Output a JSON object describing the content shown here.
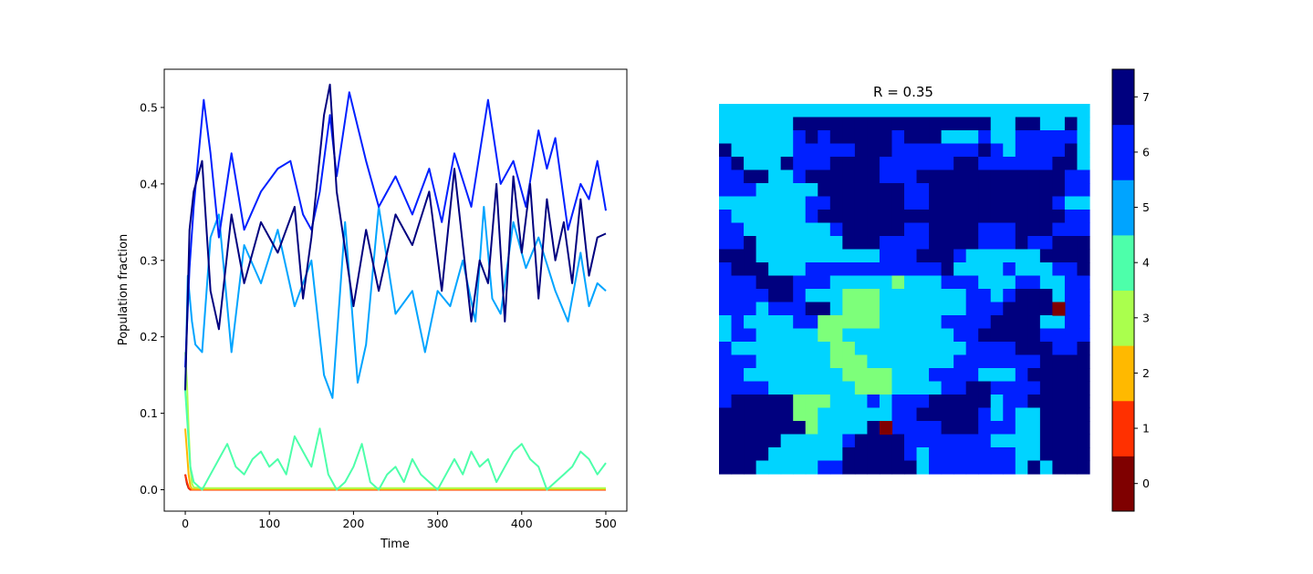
{
  "left_chart": {
    "xlabel": "Time",
    "ylabel": "Population fraction",
    "xticks": [
      "0",
      "100",
      "200",
      "300",
      "400",
      "500"
    ],
    "yticks": [
      "0.0",
      "0.1",
      "0.2",
      "0.3",
      "0.4",
      "0.5"
    ]
  },
  "right_chart": {
    "title": "R = 0.35",
    "colorbar_ticks": [
      "0",
      "1",
      "2",
      "3",
      "4",
      "5",
      "6",
      "7"
    ]
  },
  "chart_data": [
    {
      "type": "line",
      "xlabel": "Time",
      "ylabel": "Population fraction",
      "xlim": [
        -25,
        525
      ],
      "ylim": [
        -0.028,
        0.55
      ],
      "grid": false,
      "series": [
        {
          "color": "#00007f",
          "x": [
            0,
            5,
            10,
            20,
            30,
            40,
            55,
            70,
            90,
            110,
            130,
            140,
            150,
            165,
            172,
            180,
            200,
            215,
            230,
            250,
            270,
            290,
            305,
            320,
            340,
            350,
            360,
            370,
            380,
            390,
            400,
            410,
            420,
            430,
            440,
            450,
            460,
            470,
            480,
            490,
            500
          ],
          "y": [
            0.13,
            0.34,
            0.39,
            0.43,
            0.26,
            0.21,
            0.36,
            0.27,
            0.35,
            0.31,
            0.37,
            0.25,
            0.33,
            0.49,
            0.53,
            0.39,
            0.24,
            0.34,
            0.26,
            0.36,
            0.32,
            0.39,
            0.26,
            0.42,
            0.22,
            0.3,
            0.27,
            0.4,
            0.22,
            0.41,
            0.31,
            0.4,
            0.25,
            0.38,
            0.3,
            0.35,
            0.27,
            0.38,
            0.28,
            0.33,
            0.335
          ]
        },
        {
          "color": "#0020ff",
          "x": [
            0,
            5,
            10,
            22,
            30,
            40,
            55,
            70,
            90,
            110,
            125,
            140,
            150,
            160,
            172,
            180,
            195,
            215,
            230,
            250,
            270,
            290,
            305,
            320,
            340,
            360,
            375,
            390,
            405,
            420,
            430,
            440,
            455,
            470,
            480,
            490,
            500
          ],
          "y": [
            0.16,
            0.29,
            0.37,
            0.51,
            0.44,
            0.33,
            0.44,
            0.34,
            0.39,
            0.42,
            0.43,
            0.36,
            0.34,
            0.39,
            0.49,
            0.41,
            0.52,
            0.43,
            0.37,
            0.41,
            0.36,
            0.42,
            0.35,
            0.44,
            0.37,
            0.51,
            0.4,
            0.43,
            0.37,
            0.47,
            0.42,
            0.46,
            0.34,
            0.4,
            0.38,
            0.43,
            0.365
          ]
        },
        {
          "color": "#00a4ff",
          "x": [
            0,
            3,
            8,
            12,
            20,
            30,
            40,
            55,
            70,
            90,
            110,
            130,
            150,
            165,
            175,
            190,
            205,
            215,
            230,
            250,
            270,
            285,
            300,
            315,
            330,
            345,
            355,
            365,
            375,
            390,
            405,
            420,
            440,
            455,
            470,
            480,
            490,
            500
          ],
          "y": [
            0.13,
            0.28,
            0.22,
            0.19,
            0.18,
            0.33,
            0.36,
            0.18,
            0.32,
            0.27,
            0.34,
            0.24,
            0.3,
            0.15,
            0.12,
            0.35,
            0.14,
            0.19,
            0.37,
            0.23,
            0.26,
            0.18,
            0.26,
            0.24,
            0.3,
            0.22,
            0.37,
            0.25,
            0.23,
            0.35,
            0.29,
            0.33,
            0.26,
            0.22,
            0.31,
            0.24,
            0.27,
            0.26
          ]
        },
        {
          "color": "#4dffaa",
          "x": [
            0,
            3,
            6,
            10,
            20,
            30,
            40,
            50,
            60,
            70,
            80,
            90,
            100,
            110,
            120,
            130,
            140,
            150,
            160,
            170,
            180,
            190,
            200,
            210,
            220,
            230,
            240,
            250,
            260,
            270,
            280,
            290,
            300,
            310,
            320,
            330,
            340,
            350,
            360,
            370,
            380,
            390,
            400,
            410,
            420,
            430,
            440,
            450,
            460,
            470,
            480,
            490,
            500
          ],
          "y": [
            0.13,
            0.08,
            0.03,
            0.01,
            0.0,
            0.02,
            0.04,
            0.06,
            0.03,
            0.02,
            0.04,
            0.05,
            0.03,
            0.04,
            0.02,
            0.07,
            0.05,
            0.03,
            0.08,
            0.02,
            0.0,
            0.01,
            0.03,
            0.06,
            0.01,
            0.0,
            0.02,
            0.03,
            0.01,
            0.04,
            0.02,
            0.01,
            0.0,
            0.02,
            0.04,
            0.02,
            0.05,
            0.03,
            0.04,
            0.01,
            0.03,
            0.05,
            0.06,
            0.04,
            0.03,
            0.0,
            0.01,
            0.02,
            0.03,
            0.05,
            0.04,
            0.02,
            0.035
          ]
        },
        {
          "color": "#aaff4d",
          "x": [
            0,
            2,
            4,
            6,
            8,
            10,
            20,
            500
          ],
          "y": [
            0.18,
            0.14,
            0.08,
            0.03,
            0.008,
            0.003,
            0.002,
            0.002
          ]
        },
        {
          "color": "#ffb900",
          "x": [
            0,
            2,
            4,
            6,
            8,
            500
          ],
          "y": [
            0.08,
            0.05,
            0.02,
            0.005,
            0.001,
            0.001
          ]
        },
        {
          "color": "#ff3000",
          "x": [
            0,
            2,
            4,
            6,
            500
          ],
          "y": [
            0.02,
            0.01,
            0.003,
            0.0,
            0.0
          ]
        },
        {
          "color": "#7f0000",
          "x": [
            0,
            2,
            4,
            6,
            500
          ],
          "y": [
            0.02,
            0.008,
            0.002,
            0.0,
            0.0
          ]
        }
      ]
    },
    {
      "type": "heatmap",
      "title": "R = 0.35",
      "colormap": "jet",
      "colorbar_ticks": [
        0,
        1,
        2,
        3,
        4,
        5,
        6,
        7
      ],
      "colorbar_colors": [
        "#7f0000",
        "#ff3000",
        "#ffb900",
        "#aaff4d",
        "#4dffaa",
        "#00a4ff",
        "#0020ff",
        "#00007f"
      ],
      "cell_colors": {
        "3": "#7dff7a",
        "5": "#00d4ff"
      },
      "grid": [
        "555555555555555555555555555555",
        "555555777777777777777755775575",
        "555555676777776777555655666665",
        "755555666667776666666765666675",
        "675557666777766666677666666775",
        "667755677777766677777777777766",
        "666555557777777667777777777766",
        "555555566777777667777777777655",
        "655555567777777777777777777766",
        "665555555677777667777666777666",
        "667555555577766667777666766777",
        "777555555555566677765555557777",
        "677755566666666666755556555667",
        "666777666555553555666555665566",
        "666677655533355555556656777566",
        "666566677533355555556667777766",
        "565555663333355555666677775566",
        "566555553355555555566777776666",
        "655555555335555555556666777667",
        "666555555333555555566666667777",
        "665555555533335556666555677777",
        "666655555553335555667766667777",
        "677777333555656667777756677777",
        "777777335555556677777656557777",
        "777777735555766666777666557777",
        "777775555567777666666655557777",
        "777755555577777656666666557777",
        "777555556677777756666666575777"
      ],
      "special_cells": [
        {
          "row": 15,
          "col": 27,
          "value": 0
        },
        {
          "row": 24,
          "col": 13,
          "value": 0
        }
      ]
    }
  ]
}
